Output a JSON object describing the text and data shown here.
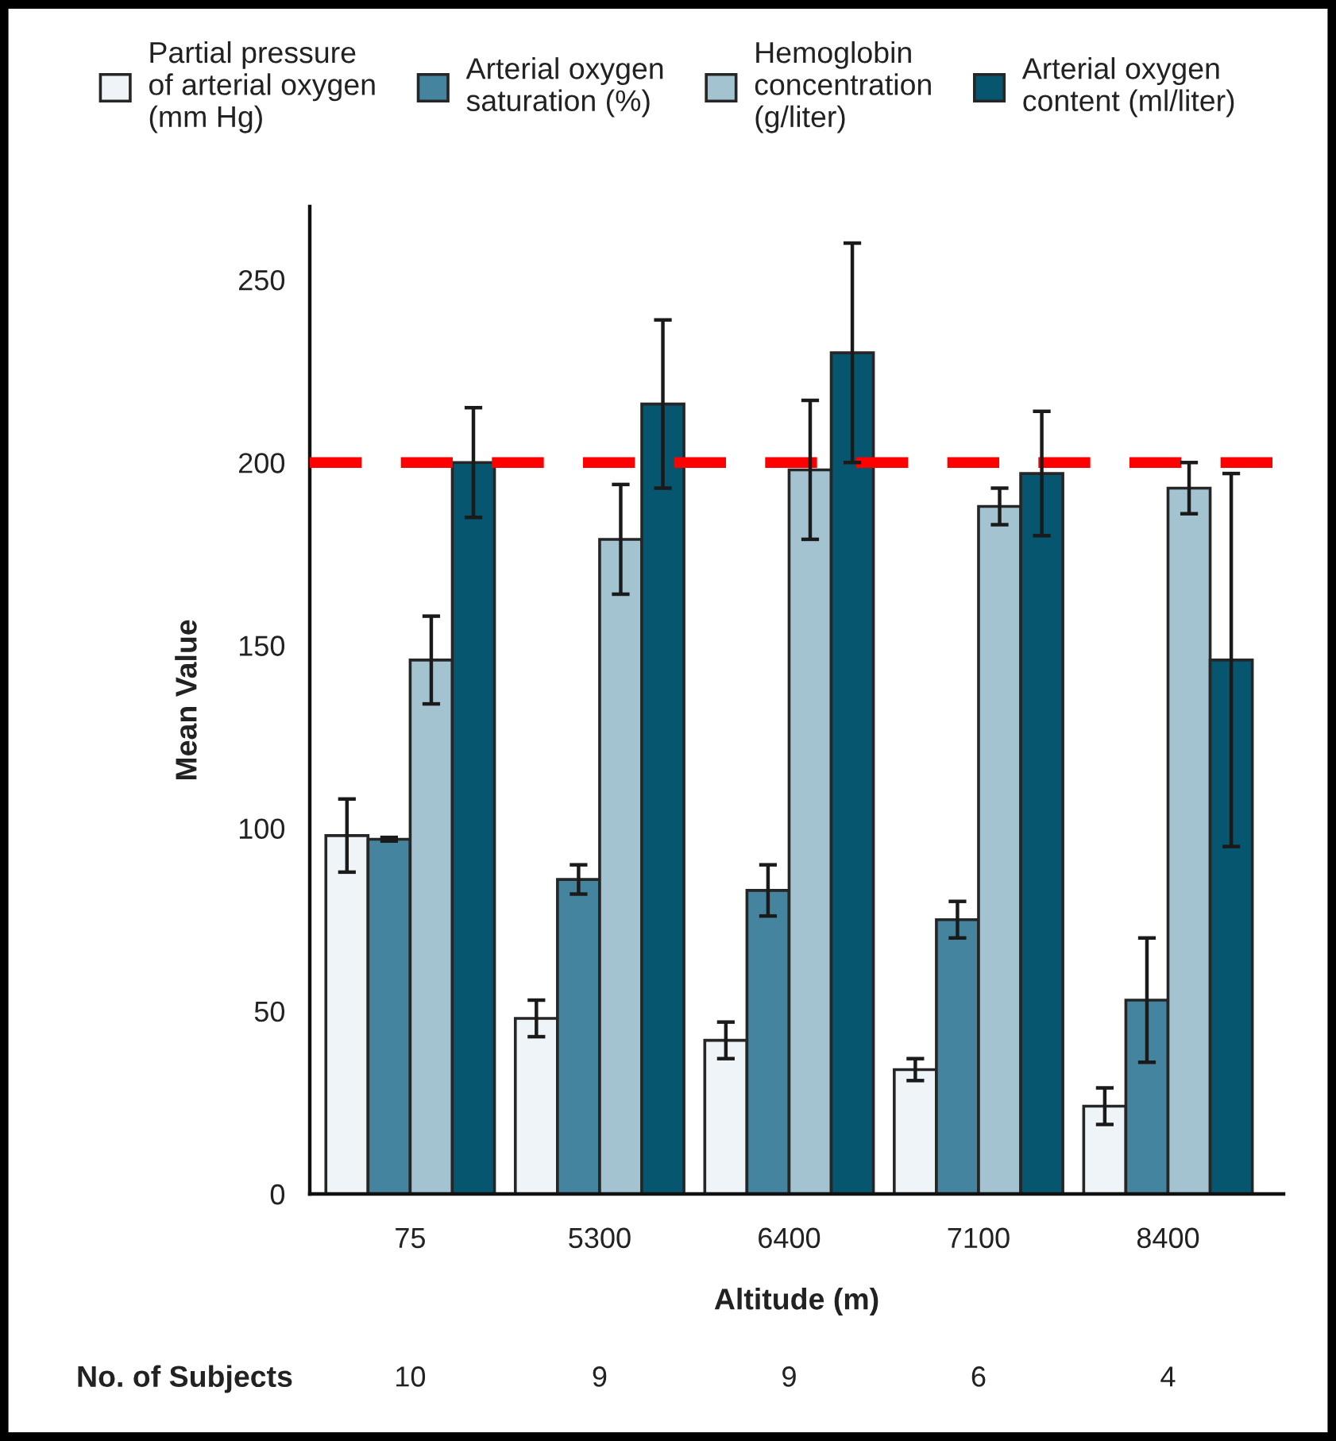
{
  "chart_data": {
    "type": "bar",
    "categories": [
      "75",
      "5300",
      "6400",
      "7100",
      "8400"
    ],
    "xlabel": "Altitude (m)",
    "ylabel": "Mean Value",
    "series": [
      {
        "name": "Partial pressure\nof arterial oxygen\n(mm Hg)",
        "color": "#eef4f7",
        "values": [
          98,
          48,
          42,
          34,
          24
        ],
        "errors": [
          10,
          5,
          5,
          3,
          5
        ]
      },
      {
        "name": "Arterial oxygen\nsaturation (%)",
        "color": "#45849e",
        "values": [
          97,
          86,
          83,
          75,
          53
        ],
        "errors": [
          0.5,
          4,
          7,
          5,
          17
        ]
      },
      {
        "name": "Hemoglobin\nconcentration\n(g/liter)",
        "color": "#a3c3d1",
        "values": [
          146,
          179,
          198,
          188,
          193
        ],
        "errors": [
          12,
          15,
          19,
          5,
          7
        ]
      },
      {
        "name": "Arterial oxygen\ncontent (ml/liter)",
        "color": "#05566e",
        "values": [
          200,
          216,
          230,
          197,
          146
        ],
        "errors": [
          15,
          23,
          30,
          17,
          51
        ]
      }
    ],
    "ylim": [
      0,
      270
    ],
    "yticks": [
      0,
      50,
      100,
      150,
      200,
      250
    ],
    "legend": "top",
    "ref_lines": [
      {
        "axis": "y",
        "value": 200,
        "color": "#ff0000",
        "line_style": "dashed"
      }
    ],
    "annotations": [
      "No. of Subjects",
      "10",
      "9",
      "9",
      "6",
      "4"
    ]
  }
}
